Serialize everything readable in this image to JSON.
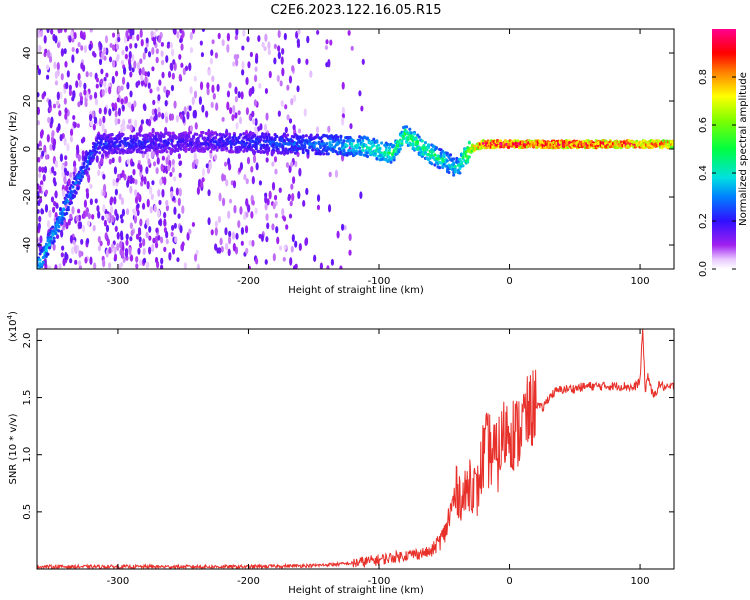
{
  "title": "C2E6.2023.122.16.05.R15",
  "chart_data": [
    {
      "type": "heatmap",
      "xlabel": "Height of straight line (km)",
      "ylabel": "Frequency (Hz)",
      "xlim": [
        -362,
        126
      ],
      "ylim": [
        -50,
        50
      ],
      "x_ticks": [
        -300,
        -200,
        -100,
        0,
        100
      ],
      "y_ticks": [
        -40,
        -20,
        0,
        20,
        40
      ],
      "colorbar": {
        "label": "Normalized spectral amplitude",
        "range": [
          0,
          1
        ],
        "ticks": [
          "0.0",
          "0.2",
          "0.4",
          "0.6",
          "0.8"
        ],
        "tick_values": [
          0,
          0.2,
          0.4,
          0.6,
          0.8
        ]
      },
      "ridge": {
        "description_points": [
          {
            "x": -345,
            "y": -30,
            "amp": 0.35
          },
          {
            "x": -330,
            "y": -12,
            "amp": 0.3
          },
          {
            "x": -315,
            "y": 2,
            "amp": 0.25
          },
          {
            "x": -240,
            "y": 3,
            "amp": 0.2
          },
          {
            "x": -150,
            "y": 2,
            "amp": 0.3
          },
          {
            "x": -110,
            "y": 1,
            "amp": 0.45
          },
          {
            "x": -90,
            "y": -2,
            "amp": 0.5
          },
          {
            "x": -80,
            "y": 6,
            "amp": 0.55
          },
          {
            "x": -60,
            "y": -2,
            "amp": 0.5
          },
          {
            "x": -40,
            "y": -8,
            "amp": 0.4
          },
          {
            "x": -30,
            "y": 0,
            "amp": 0.7
          },
          {
            "x": -20,
            "y": 2,
            "amp": 0.95
          },
          {
            "x": 50,
            "y": 2,
            "amp": 0.95
          },
          {
            "x": 100,
            "y": 2,
            "amp": 0.9
          },
          {
            "x": 126,
            "y": 2,
            "amp": 0.85
          }
        ]
      }
    },
    {
      "type": "line",
      "xlabel": "Height of straight line (km)",
      "ylabel": "SNR (10 * v/v)",
      "y_multiplier": "(x10^4)",
      "xlim": [
        -362,
        126
      ],
      "ylim": [
        0,
        2.1
      ],
      "x_ticks": [
        -300,
        -200,
        -100,
        0,
        100
      ],
      "y_ticks": [
        0.5,
        1.0,
        1.5,
        2.0
      ],
      "y_tick_labels": [
        "0.5",
        "1.0",
        "1.5",
        "2.0"
      ],
      "series": [
        {
          "color": "#e8302a",
          "x": [
            -362,
            -300,
            -200,
            -150,
            -120,
            -100,
            -80,
            -60,
            -50,
            -45,
            -40,
            -35,
            -30,
            -25,
            -20,
            -15,
            -10,
            -5,
            0,
            5,
            10,
            15,
            20,
            25,
            30,
            35,
            40,
            50,
            60,
            70,
            80,
            90,
            95,
            100,
            102,
            104,
            106,
            110,
            115,
            120,
            126
          ],
          "values": [
            0.02,
            0.02,
            0.02,
            0.03,
            0.05,
            0.08,
            0.12,
            0.15,
            0.3,
            0.5,
            0.7,
            0.6,
            0.8,
            0.65,
            1.0,
            1.05,
            0.95,
            1.15,
            1.25,
            1.15,
            1.3,
            1.35,
            1.45,
            1.4,
            1.5,
            1.55,
            1.57,
            1.58,
            1.6,
            1.6,
            1.6,
            1.6,
            1.58,
            1.65,
            2.1,
            1.55,
            1.7,
            1.5,
            1.62,
            1.58,
            1.6
          ]
        }
      ]
    }
  ]
}
